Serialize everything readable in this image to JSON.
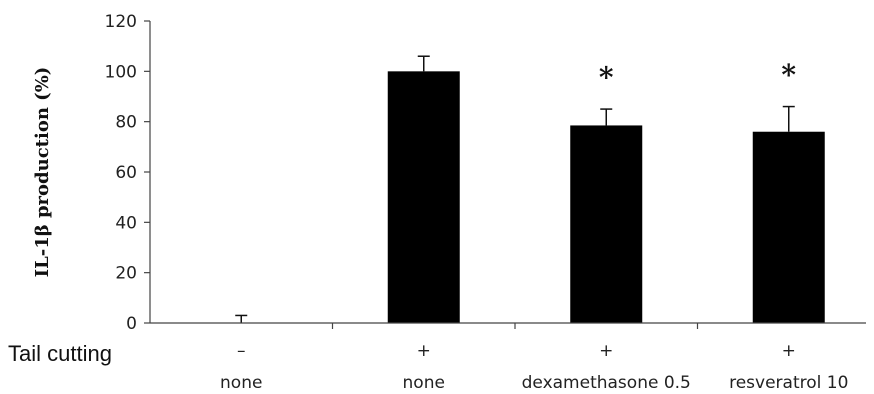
{
  "chart_data": {
    "type": "bar",
    "title": "",
    "xlabel": "",
    "ylabel": "IL-1β production (%)",
    "ylim": [
      0,
      120
    ],
    "yticks": [
      0,
      20,
      40,
      60,
      80,
      100,
      120
    ],
    "grid": false,
    "legend": "none",
    "bar_color": "#000000",
    "categories": [
      "none",
      "none",
      "dexamethasone 0.5",
      "resveratrol 10"
    ],
    "values": [
      0,
      100,
      78.5,
      76
    ],
    "errors": [
      3,
      6,
      6.5,
      10
    ],
    "significance": [
      "",
      "",
      "*",
      "*"
    ],
    "tail_cutting_label": "Tail cutting",
    "tail_cutting": [
      "–",
      "+",
      "+",
      "+"
    ]
  }
}
